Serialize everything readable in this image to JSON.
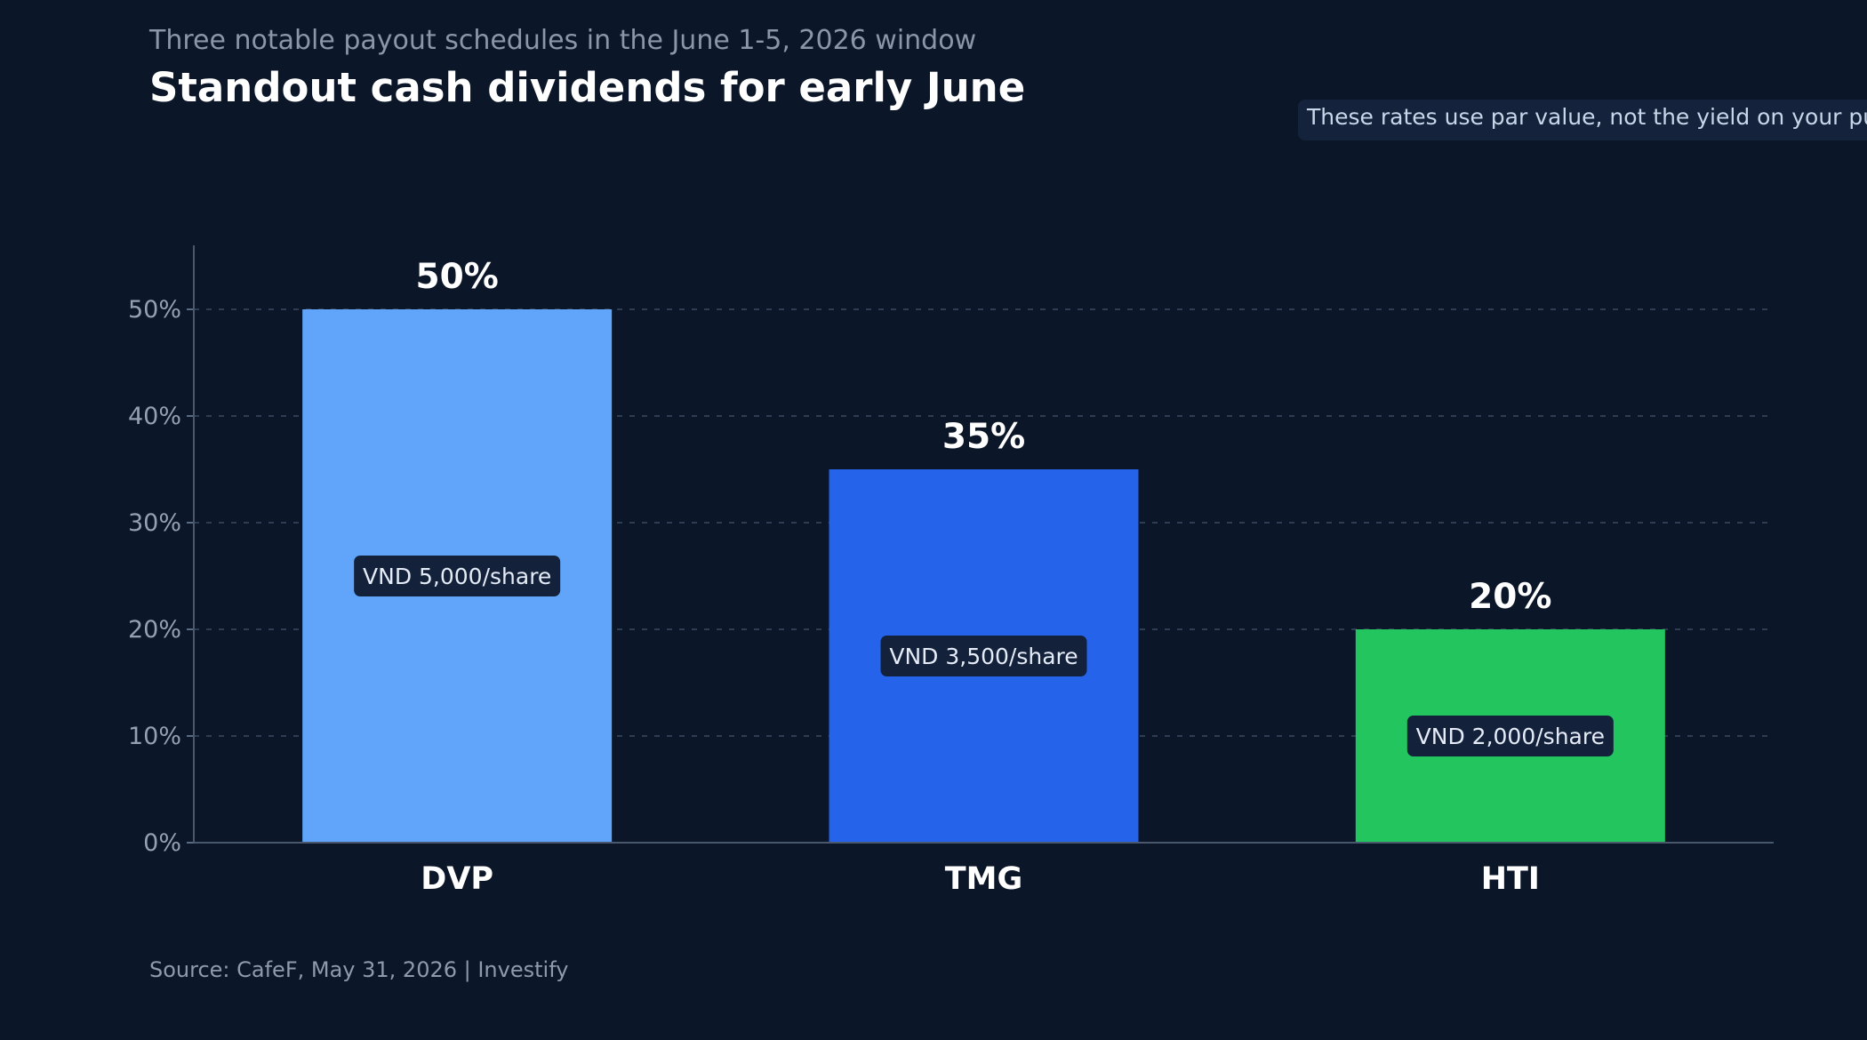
{
  "subtitle": "Three notable payout schedules in the June 1-5, 2026 window",
  "title": "Standout cash dividends for early June",
  "note": "These rates use par value, not the yield on your purchase price",
  "source": "Source: CafeF, May 31, 2026 | Investify",
  "chart_data": {
    "type": "bar",
    "categories": [
      "DVP",
      "TMG",
      "HTI"
    ],
    "values": [
      50,
      35,
      20
    ],
    "value_labels": [
      "50%",
      "35%",
      "20%"
    ],
    "payout_labels": [
      "VND 5,000/share",
      "VND 3,500/share",
      "VND 2,000/share"
    ],
    "colors": [
      "#60a5fa",
      "#2563eb",
      "#22c55e"
    ],
    "ylim": [
      0,
      56
    ],
    "yticks": [
      0,
      10,
      20,
      30,
      40,
      50
    ],
    "ytick_labels": [
      "0%",
      "10%",
      "20%",
      "30%",
      "40%",
      "50%"
    ],
    "grid": true,
    "grid_style": "dashed"
  }
}
